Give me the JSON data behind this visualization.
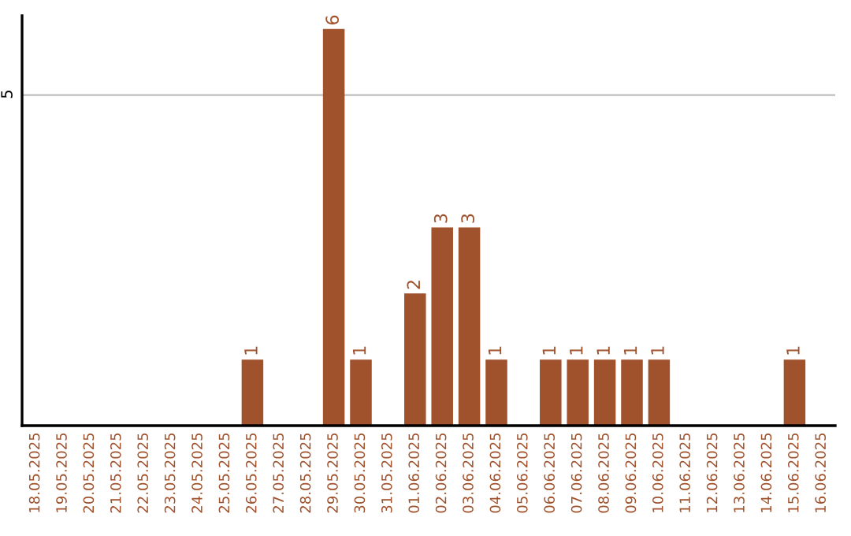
{
  "chart_data": {
    "type": "bar",
    "categories": [
      "18.05.2025",
      "19.05.2025",
      "20.05.2025",
      "21.05.2025",
      "22.05.2025",
      "23.05.2025",
      "24.05.2025",
      "25.05.2025",
      "26.05.2025",
      "27.05.2025",
      "28.05.2025",
      "29.05.2025",
      "30.05.2025",
      "31.05.2025",
      "01.06.2025",
      "02.06.2025",
      "03.06.2025",
      "04.06.2025",
      "05.06.2025",
      "06.06.2025",
      "07.06.2025",
      "08.06.2025",
      "09.06.2025",
      "10.06.2025",
      "11.06.2025",
      "12.06.2025",
      "13.06.2025",
      "14.06.2025",
      "15.06.2025",
      "16.06.2025"
    ],
    "values": [
      0,
      0,
      0,
      0,
      0,
      0,
      0,
      0,
      1,
      0,
      0,
      6,
      1,
      0,
      2,
      3,
      3,
      1,
      0,
      1,
      1,
      1,
      1,
      1,
      0,
      0,
      0,
      0,
      1,
      0
    ],
    "value_labels": [
      null,
      null,
      null,
      null,
      null,
      null,
      null,
      null,
      "1",
      null,
      null,
      "6",
      "1",
      null,
      "2",
      "3",
      "3",
      "1",
      null,
      "1",
      "1",
      "1",
      "1",
      "1",
      null,
      null,
      null,
      null,
      "1",
      null
    ],
    "color": "#a0522d",
    "ylim": [
      0,
      6.2
    ],
    "yticks": [
      5
    ],
    "grid": "y"
  }
}
